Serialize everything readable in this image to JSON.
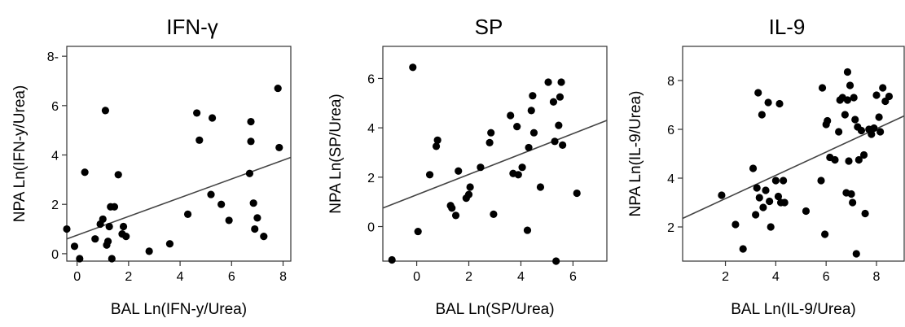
{
  "chart_data": [
    {
      "type": "scatter",
      "title": "IFN-γ",
      "xlabel": "BAL Ln(IFN-y/Urea)",
      "ylabel": "NPA Ln(IFN-y/Urea)",
      "xlim": [
        -0.4,
        8.3
      ],
      "ylim": [
        -0.3,
        8.4
      ],
      "xticks": [
        0,
        2,
        4,
        6,
        8
      ],
      "yticks": [
        0,
        2,
        4,
        6,
        8
      ],
      "ytick_labels": [
        "0",
        "2",
        "4",
        "6",
        "8-"
      ],
      "fit_line": {
        "x": [
          -0.4,
          8.3
        ],
        "y": [
          0.6,
          3.9
        ]
      },
      "points": [
        {
          "x": -0.4,
          "y": 1.0
        },
        {
          "x": -0.1,
          "y": 0.3
        },
        {
          "x": 0.1,
          "y": -0.2
        },
        {
          "x": 0.3,
          "y": 3.3
        },
        {
          "x": 0.7,
          "y": 0.6
        },
        {
          "x": 0.9,
          "y": 1.2
        },
        {
          "x": 1.0,
          "y": 1.4
        },
        {
          "x": 1.1,
          "y": 5.8
        },
        {
          "x": 1.15,
          "y": 0.35
        },
        {
          "x": 1.2,
          "y": 0.5
        },
        {
          "x": 1.25,
          "y": 1.1
        },
        {
          "x": 1.3,
          "y": 1.9
        },
        {
          "x": 1.35,
          "y": -0.2
        },
        {
          "x": 1.45,
          "y": 1.9
        },
        {
          "x": 1.6,
          "y": 3.2
        },
        {
          "x": 1.75,
          "y": 0.8
        },
        {
          "x": 1.8,
          "y": 1.1
        },
        {
          "x": 1.9,
          "y": 0.7
        },
        {
          "x": 2.8,
          "y": 0.1
        },
        {
          "x": 3.6,
          "y": 0.4
        },
        {
          "x": 4.3,
          "y": 1.6
        },
        {
          "x": 4.65,
          "y": 5.7
        },
        {
          "x": 4.75,
          "y": 4.6
        },
        {
          "x": 5.2,
          "y": 2.4
        },
        {
          "x": 5.25,
          "y": 5.5
        },
        {
          "x": 5.6,
          "y": 2.0
        },
        {
          "x": 5.9,
          "y": 1.35
        },
        {
          "x": 6.7,
          "y": 3.25
        },
        {
          "x": 6.75,
          "y": 5.35
        },
        {
          "x": 6.75,
          "y": 4.55
        },
        {
          "x": 6.85,
          "y": 2.05
        },
        {
          "x": 6.9,
          "y": 1.0
        },
        {
          "x": 7.0,
          "y": 1.45
        },
        {
          "x": 7.25,
          "y": 0.7
        },
        {
          "x": 7.8,
          "y": 6.7
        },
        {
          "x": 7.85,
          "y": 4.3
        }
      ]
    },
    {
      "type": "scatter",
      "title": "SP",
      "xlabel": "BAL Ln(SP/Urea)",
      "ylabel": "NPA Ln(SP/Urea)",
      "xlim": [
        -1.3,
        7.3
      ],
      "ylim": [
        -1.4,
        7.3
      ],
      "xticks": [
        0,
        2,
        4,
        6
      ],
      "yticks": [
        0,
        2,
        4,
        6
      ],
      "ytick_labels": [
        "0",
        "2",
        "4",
        "6"
      ],
      "fit_line": {
        "x": [
          -1.3,
          7.3
        ],
        "y": [
          0.75,
          4.3
        ]
      },
      "points": [
        {
          "x": -0.95,
          "y": -1.35
        },
        {
          "x": -0.15,
          "y": 6.45
        },
        {
          "x": 0.05,
          "y": -0.2
        },
        {
          "x": 0.5,
          "y": 2.1
        },
        {
          "x": 0.75,
          "y": 3.25
        },
        {
          "x": 0.8,
          "y": 3.5
        },
        {
          "x": 1.3,
          "y": 0.85
        },
        {
          "x": 1.35,
          "y": 0.75
        },
        {
          "x": 1.5,
          "y": 0.45
        },
        {
          "x": 1.6,
          "y": 2.25
        },
        {
          "x": 1.9,
          "y": 1.15
        },
        {
          "x": 2.0,
          "y": 1.3
        },
        {
          "x": 2.05,
          "y": 1.6
        },
        {
          "x": 2.45,
          "y": 2.4
        },
        {
          "x": 2.8,
          "y": 3.4
        },
        {
          "x": 2.85,
          "y": 3.8
        },
        {
          "x": 2.95,
          "y": 0.5
        },
        {
          "x": 3.6,
          "y": 4.5
        },
        {
          "x": 3.7,
          "y": 2.15
        },
        {
          "x": 3.85,
          "y": 4.05
        },
        {
          "x": 3.9,
          "y": 2.1
        },
        {
          "x": 4.05,
          "y": 2.4
        },
        {
          "x": 4.25,
          "y": -0.15
        },
        {
          "x": 4.3,
          "y": 3.2
        },
        {
          "x": 4.4,
          "y": 4.7
        },
        {
          "x": 4.45,
          "y": 5.3
        },
        {
          "x": 4.5,
          "y": 3.8
        },
        {
          "x": 4.75,
          "y": 1.6
        },
        {
          "x": 5.05,
          "y": 5.85
        },
        {
          "x": 5.25,
          "y": 5.05
        },
        {
          "x": 5.3,
          "y": 3.45
        },
        {
          "x": 5.35,
          "y": -1.45
        },
        {
          "x": 5.45,
          "y": 4.1
        },
        {
          "x": 5.5,
          "y": 5.25
        },
        {
          "x": 5.55,
          "y": 5.85
        },
        {
          "x": 5.6,
          "y": 3.3
        },
        {
          "x": 6.15,
          "y": 1.35
        }
      ]
    },
    {
      "type": "scatter",
      "title": "IL-9",
      "xlabel": "BAL Ln(IL-9/Urea)",
      "ylabel": "NPA Ln(IL-9/Urea)",
      "xlim": [
        0.3,
        9.1
      ],
      "ylim": [
        0.6,
        9.4
      ],
      "xticks": [
        2,
        4,
        6,
        8
      ],
      "yticks": [
        2,
        4,
        6,
        8
      ],
      "ytick_labels": [
        "2",
        "4",
        "6",
        "8"
      ],
      "fit_line": {
        "x": [
          0.3,
          9.1
        ],
        "y": [
          2.35,
          6.55
        ]
      },
      "points": [
        {
          "x": 1.85,
          "y": 3.3
        },
        {
          "x": 2.4,
          "y": 2.1
        },
        {
          "x": 2.7,
          "y": 1.1
        },
        {
          "x": 3.1,
          "y": 4.4
        },
        {
          "x": 3.2,
          "y": 2.5
        },
        {
          "x": 3.25,
          "y": 3.6
        },
        {
          "x": 3.3,
          "y": 7.5
        },
        {
          "x": 3.35,
          "y": 3.2
        },
        {
          "x": 3.45,
          "y": 6.6
        },
        {
          "x": 3.5,
          "y": 2.8
        },
        {
          "x": 3.6,
          "y": 3.5
        },
        {
          "x": 3.7,
          "y": 7.1
        },
        {
          "x": 3.75,
          "y": 3.05
        },
        {
          "x": 3.8,
          "y": 2.0
        },
        {
          "x": 4.0,
          "y": 3.9
        },
        {
          "x": 4.1,
          "y": 3.25
        },
        {
          "x": 4.15,
          "y": 7.05
        },
        {
          "x": 4.2,
          "y": 3.0
        },
        {
          "x": 4.3,
          "y": 3.9
        },
        {
          "x": 4.35,
          "y": 3.0
        },
        {
          "x": 5.2,
          "y": 2.65
        },
        {
          "x": 5.8,
          "y": 3.9
        },
        {
          "x": 5.85,
          "y": 7.7
        },
        {
          "x": 5.95,
          "y": 1.7
        },
        {
          "x": 6.0,
          "y": 6.2
        },
        {
          "x": 6.05,
          "y": 6.35
        },
        {
          "x": 6.15,
          "y": 4.85
        },
        {
          "x": 6.35,
          "y": 4.75
        },
        {
          "x": 6.5,
          "y": 5.9
        },
        {
          "x": 6.55,
          "y": 7.2
        },
        {
          "x": 6.65,
          "y": 7.3
        },
        {
          "x": 6.75,
          "y": 6.6
        },
        {
          "x": 6.8,
          "y": 3.4
        },
        {
          "x": 6.85,
          "y": 8.35
        },
        {
          "x": 6.85,
          "y": 7.2
        },
        {
          "x": 6.9,
          "y": 4.7
        },
        {
          "x": 6.95,
          "y": 7.8
        },
        {
          "x": 7.0,
          "y": 3.35
        },
        {
          "x": 7.05,
          "y": 3.0
        },
        {
          "x": 7.1,
          "y": 7.3
        },
        {
          "x": 7.15,
          "y": 6.4
        },
        {
          "x": 7.2,
          "y": 0.9
        },
        {
          "x": 7.25,
          "y": 6.1
        },
        {
          "x": 7.3,
          "y": 4.75
        },
        {
          "x": 7.4,
          "y": 5.95
        },
        {
          "x": 7.5,
          "y": 4.95
        },
        {
          "x": 7.55,
          "y": 2.55
        },
        {
          "x": 7.7,
          "y": 6.0
        },
        {
          "x": 7.8,
          "y": 5.8
        },
        {
          "x": 7.9,
          "y": 6.05
        },
        {
          "x": 8.0,
          "y": 7.4
        },
        {
          "x": 8.1,
          "y": 6.5
        },
        {
          "x": 8.15,
          "y": 5.9
        },
        {
          "x": 8.25,
          "y": 7.7
        },
        {
          "x": 8.35,
          "y": 7.15
        },
        {
          "x": 8.5,
          "y": 7.35
        }
      ]
    }
  ]
}
